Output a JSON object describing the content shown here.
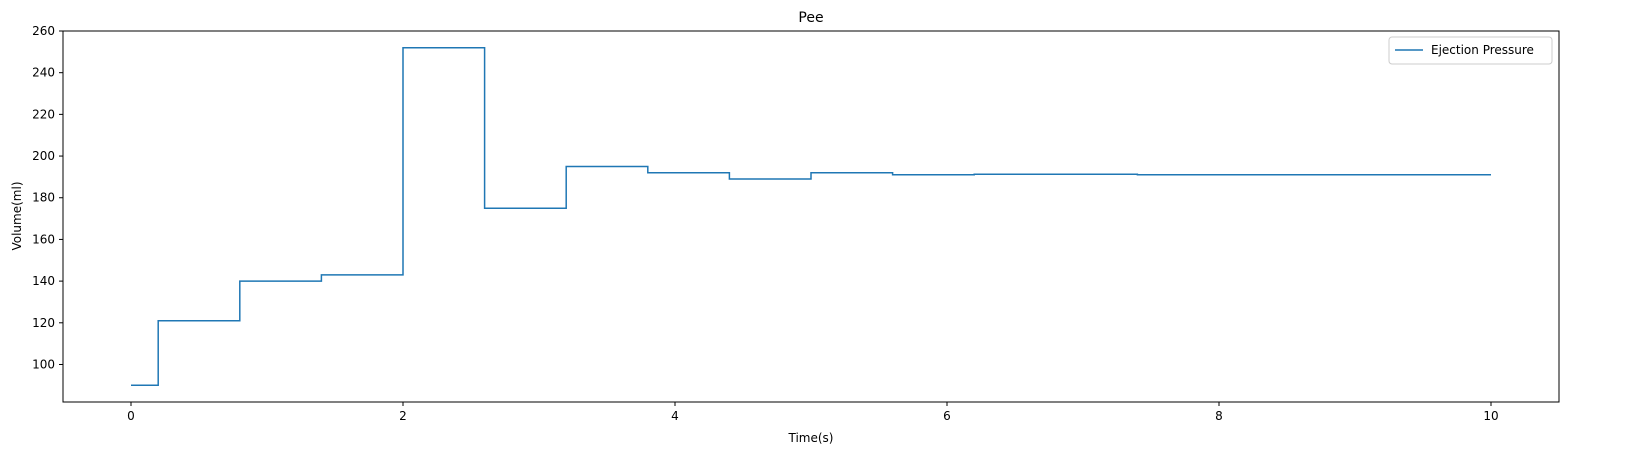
{
  "chart_data": {
    "type": "line",
    "title": "Pee",
    "xlabel": "Time(s)",
    "ylabel": "Volume(ml)",
    "xlim": [
      -0.5,
      10.5
    ],
    "ylim": [
      82,
      260
    ],
    "xticks": [
      0,
      2,
      4,
      6,
      8,
      10
    ],
    "yticks": [
      100,
      120,
      140,
      160,
      180,
      200,
      220,
      240,
      260
    ],
    "grid": false,
    "legend_position": "top-right",
    "step": "post",
    "series": [
      {
        "name": "Ejection Pressure",
        "color": "#1f77b4",
        "x": [
          0,
          0.2,
          0.8,
          1.4,
          2.0,
          2.6,
          3.2,
          3.8,
          4.4,
          5.0,
          5.6,
          6.2,
          7.4,
          10.0
        ],
        "y": [
          90,
          121,
          140,
          143,
          252,
          175,
          195,
          192,
          189,
          192,
          191,
          191.3,
          191,
          191
        ]
      }
    ]
  }
}
